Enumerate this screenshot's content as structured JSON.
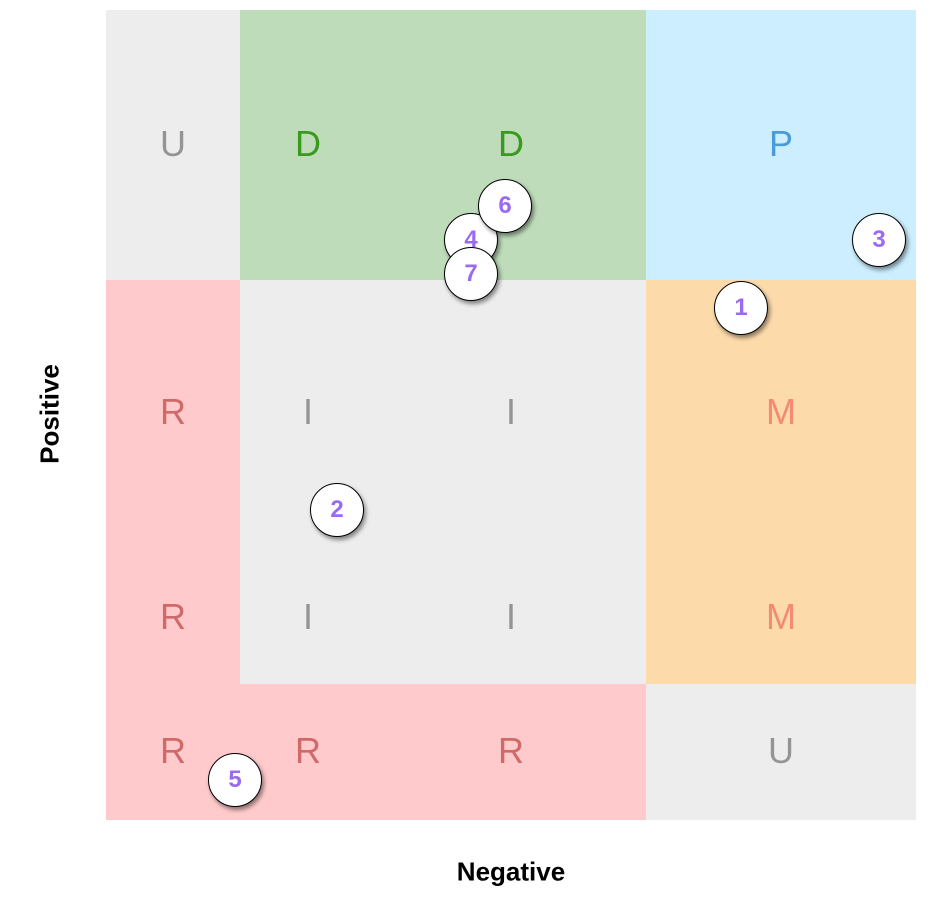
{
  "axes": {
    "x_label": "Negative",
    "y_label": "Positive"
  },
  "colors": {
    "gray": "#ededed",
    "green": "#bedcba",
    "blue": "#cceeff",
    "red": "#ffcacb",
    "orange": "#fddaaa",
    "label_gray": "#949494",
    "label_green": "#3a9a1e",
    "label_blue": "#4b9ad9",
    "label_red": "#d06a6a",
    "label_orange": "#f58a72",
    "marker_text": "#9a6bf0"
  },
  "cells": {
    "r1c1": "U",
    "r1c2": "D",
    "r1c3": "D",
    "r1c4": "P",
    "r2c1": "R",
    "r2c2": "I",
    "r2c3": "I",
    "r2c4": "M",
    "r3c1": "R",
    "r3c2": "I",
    "r3c3": "I",
    "r3c4": "M",
    "r4c1": "R",
    "r4c2": "R",
    "r4c3": "R",
    "r4c4": "U"
  },
  "markers": [
    "1",
    "2",
    "3",
    "4",
    "5",
    "6",
    "7"
  ]
}
